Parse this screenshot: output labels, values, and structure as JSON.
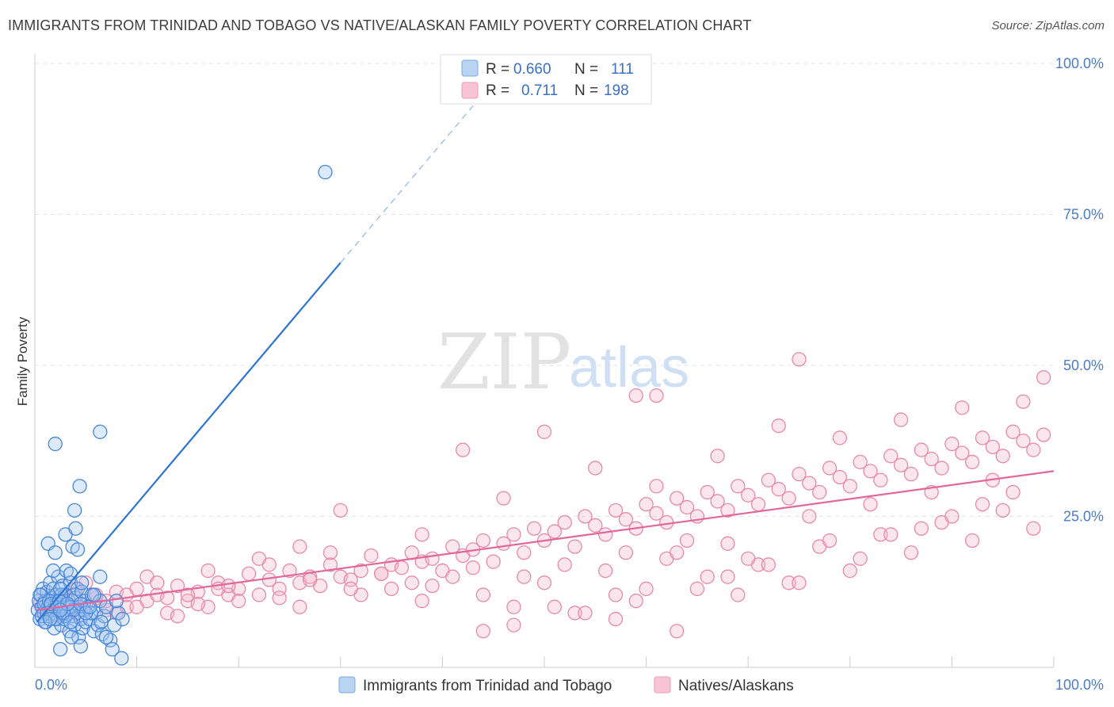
{
  "title": "IMMIGRANTS FROM TRINIDAD AND TOBAGO VS NATIVE/ALASKAN FAMILY POVERTY CORRELATION CHART",
  "source": "Source: ZipAtlas.com",
  "watermark": {
    "zip": "ZIP",
    "atlas": "atlas"
  },
  "colors": {
    "blue": "#4a86d8",
    "blue_fill": "rgba(158,196,240,0.35)",
    "pink": "#e58aaa",
    "pink_fill": "rgba(245,182,204,0.35)",
    "blue_line": "#2f74d0",
    "pink_line": "#e2679a"
  },
  "legend": {
    "rows": [
      {
        "r_label": "R =",
        "r_value": "0.660",
        "n_label": "N =",
        "n_value": "111"
      },
      {
        "r_label": "R =",
        "r_value": "0.711",
        "n_label": "N =",
        "n_value": "198"
      }
    ]
  },
  "bottom_legend": [
    "Immigrants from Trinidad and Tobago",
    "Natives/Alaskans"
  ],
  "chart_data": {
    "type": "scatter",
    "xlabel": "",
    "ylabel": "Family Poverty",
    "xlim": [
      0,
      100
    ],
    "ylim": [
      0,
      100
    ],
    "x_tick_labels": [
      "0.0%",
      "100.0%"
    ],
    "y_tick_labels": [
      "25.0%",
      "50.0%",
      "75.0%",
      "100.0%"
    ],
    "grid": true,
    "legend_position": "top-center",
    "series": [
      {
        "name": "Immigrants from Trinidad and Tobago",
        "trend": {
          "x0": 0.2,
          "y0": 7.5,
          "x1": 30.0,
          "y1": 67.0,
          "dash_to_x": 43.0
        },
        "points": [
          [
            0.3,
            9.5
          ],
          [
            0.4,
            11
          ],
          [
            0.5,
            8
          ],
          [
            0.6,
            12
          ],
          [
            0.7,
            10
          ],
          [
            0.8,
            13
          ],
          [
            0.9,
            9
          ],
          [
            1.0,
            11
          ],
          [
            1.1,
            7.5
          ],
          [
            1.2,
            12.5
          ],
          [
            1.3,
            10
          ],
          [
            1.4,
            8.5
          ],
          [
            1.5,
            14
          ],
          [
            1.6,
            9
          ],
          [
            1.7,
            11.5
          ],
          [
            1.8,
            13
          ],
          [
            1.9,
            6.5
          ],
          [
            2.0,
            10.5
          ],
          [
            2.1,
            12
          ],
          [
            2.2,
            8
          ],
          [
            2.3,
            15
          ],
          [
            2.4,
            9.5
          ],
          [
            2.5,
            11
          ],
          [
            2.6,
            7
          ],
          [
            2.7,
            13.5
          ],
          [
            2.8,
            10
          ],
          [
            2.9,
            8
          ],
          [
            3.0,
            12
          ],
          [
            3.1,
            16
          ],
          [
            3.2,
            9
          ],
          [
            3.3,
            11
          ],
          [
            3.4,
            6
          ],
          [
            3.5,
            14
          ],
          [
            3.6,
            10
          ],
          [
            3.7,
            8.5
          ],
          [
            3.8,
            12
          ],
          [
            3.9,
            7
          ],
          [
            4.0,
            11.5
          ],
          [
            4.1,
            9
          ],
          [
            4.2,
            13
          ],
          [
            4.3,
            5
          ],
          [
            4.4,
            10
          ],
          [
            4.5,
            8
          ],
          [
            4.6,
            12.5
          ],
          [
            4.7,
            6.5
          ],
          [
            4.8,
            9.5
          ],
          [
            4.9,
            11
          ],
          [
            5.0,
            7.5
          ],
          [
            5.2,
            10
          ],
          [
            5.4,
            8
          ],
          [
            5.6,
            12
          ],
          [
            5.8,
            6
          ],
          [
            6.0,
            9
          ],
          [
            6.2,
            7
          ],
          [
            6.4,
            11
          ],
          [
            6.6,
            5.5
          ],
          [
            6.8,
            8.5
          ],
          [
            7.0,
            10
          ],
          [
            7.4,
            4.5
          ],
          [
            7.8,
            7
          ],
          [
            8.2,
            9
          ],
          [
            0.5,
            12
          ],
          [
            0.9,
            10.5
          ],
          [
            1.4,
            11
          ],
          [
            1.8,
            9.5
          ],
          [
            2.2,
            10.5
          ],
          [
            2.6,
            12
          ],
          [
            3.0,
            8.5
          ],
          [
            3.4,
            10
          ],
          [
            3.8,
            9.5
          ],
          [
            0.7,
            8.5
          ],
          [
            1.2,
            9
          ],
          [
            1.6,
            10.5
          ],
          [
            2.0,
            8
          ],
          [
            2.4,
            11
          ],
          [
            2.8,
            9
          ],
          [
            3.2,
            10.5
          ],
          [
            1.0,
            7.5
          ],
          [
            1.5,
            8
          ],
          [
            2.5,
            9.5
          ],
          [
            3.5,
            7.5
          ],
          [
            4.5,
            10.5
          ],
          [
            5.5,
            9
          ],
          [
            6.5,
            7.5
          ],
          [
            1.3,
            20.5
          ],
          [
            1.8,
            16
          ],
          [
            2.0,
            19
          ],
          [
            2.5,
            13
          ],
          [
            3.0,
            22
          ],
          [
            3.5,
            15.5
          ],
          [
            3.7,
            20
          ],
          [
            3.9,
            26
          ],
          [
            4.0,
            23
          ],
          [
            4.2,
            19.5
          ],
          [
            4.6,
            14
          ],
          [
            5.0,
            9
          ],
          [
            5.4,
            10
          ],
          [
            5.8,
            12
          ],
          [
            6.4,
            15
          ],
          [
            7.0,
            5
          ],
          [
            7.6,
            3
          ],
          [
            8.0,
            11
          ],
          [
            8.6,
            8
          ],
          [
            2.0,
            37
          ],
          [
            4.4,
            30
          ],
          [
            6.4,
            39
          ],
          [
            2.5,
            3
          ],
          [
            4.5,
            3.5
          ],
          [
            8.5,
            1.5
          ],
          [
            28.5,
            82
          ],
          [
            3.6,
            5
          ]
        ]
      },
      {
        "name": "Natives/Alaskans",
        "trend": {
          "x0": 0.2,
          "y0": 9.5,
          "x1": 100.0,
          "y1": 32.5
        },
        "points": [
          [
            1,
            10
          ],
          [
            2,
            11
          ],
          [
            3,
            9
          ],
          [
            4,
            12
          ],
          [
            5,
            10.5
          ],
          [
            6,
            11.5
          ],
          [
            7,
            9.5
          ],
          [
            8,
            12.5
          ],
          [
            9,
            10
          ],
          [
            10,
            13
          ],
          [
            11,
            11
          ],
          [
            12,
            12
          ],
          [
            13,
            9
          ],
          [
            14,
            13.5
          ],
          [
            15,
            11
          ],
          [
            16,
            12.5
          ],
          [
            17,
            10
          ],
          [
            18,
            14
          ],
          [
            19,
            12
          ],
          [
            20,
            13
          ],
          [
            21,
            15.5
          ],
          [
            22,
            12
          ],
          [
            23,
            14.5
          ],
          [
            24,
            13
          ],
          [
            25,
            16
          ],
          [
            26,
            14
          ],
          [
            27,
            15
          ],
          [
            28,
            13.5
          ],
          [
            29,
            17
          ],
          [
            30,
            15
          ],
          [
            31,
            14.5
          ],
          [
            32,
            16
          ],
          [
            33,
            18.5
          ],
          [
            34,
            15.5
          ],
          [
            35,
            17
          ],
          [
            36,
            16.5
          ],
          [
            37,
            19
          ],
          [
            38,
            17.5
          ],
          [
            39,
            18
          ],
          [
            40,
            16
          ],
          [
            41,
            20
          ],
          [
            42,
            18.5
          ],
          [
            43,
            19.5
          ],
          [
            44,
            21
          ],
          [
            45,
            17.5
          ],
          [
            46,
            20.5
          ],
          [
            47,
            22
          ],
          [
            48,
            19
          ],
          [
            49,
            23
          ],
          [
            50,
            21
          ],
          [
            51,
            22.5
          ],
          [
            52,
            24
          ],
          [
            53,
            20
          ],
          [
            54,
            25
          ],
          [
            55,
            23.5
          ],
          [
            56,
            22
          ],
          [
            57,
            26
          ],
          [
            58,
            24.5
          ],
          [
            59,
            23
          ],
          [
            60,
            27
          ],
          [
            61,
            25.5
          ],
          [
            62,
            24
          ],
          [
            63,
            28
          ],
          [
            64,
            26.5
          ],
          [
            65,
            25
          ],
          [
            66,
            29
          ],
          [
            67,
            27.5
          ],
          [
            68,
            26
          ],
          [
            69,
            30
          ],
          [
            70,
            28.5
          ],
          [
            71,
            27
          ],
          [
            72,
            31
          ],
          [
            73,
            29.5
          ],
          [
            74,
            28
          ],
          [
            75,
            32
          ],
          [
            76,
            30.5
          ],
          [
            77,
            29
          ],
          [
            78,
            33
          ],
          [
            79,
            31.5
          ],
          [
            80,
            30
          ],
          [
            81,
            34
          ],
          [
            82,
            32.5
          ],
          [
            83,
            31
          ],
          [
            84,
            35
          ],
          [
            85,
            33.5
          ],
          [
            86,
            32
          ],
          [
            87,
            36
          ],
          [
            88,
            34.5
          ],
          [
            89,
            33
          ],
          [
            90,
            37
          ],
          [
            91,
            35.5
          ],
          [
            92,
            34
          ],
          [
            93,
            38
          ],
          [
            94,
            36.5
          ],
          [
            95,
            35
          ],
          [
            96,
            39
          ],
          [
            97,
            37.5
          ],
          [
            98,
            36
          ],
          [
            99,
            38.5
          ],
          [
            5,
            14
          ],
          [
            8,
            9
          ],
          [
            11,
            15
          ],
          [
            14,
            8.5
          ],
          [
            17,
            16
          ],
          [
            20,
            11
          ],
          [
            23,
            17
          ],
          [
            26,
            10
          ],
          [
            29,
            19
          ],
          [
            32,
            12
          ],
          [
            35,
            13
          ],
          [
            38,
            11
          ],
          [
            41,
            15
          ],
          [
            44,
            12
          ],
          [
            47,
            10
          ],
          [
            50,
            14
          ],
          [
            53,
            9
          ],
          [
            56,
            16
          ],
          [
            59,
            11
          ],
          [
            62,
            18
          ],
          [
            65,
            13
          ],
          [
            68,
            15
          ],
          [
            71,
            17
          ],
          [
            74,
            14
          ],
          [
            77,
            20
          ],
          [
            80,
            16
          ],
          [
            83,
            22
          ],
          [
            86,
            19
          ],
          [
            89,
            24
          ],
          [
            92,
            21
          ],
          [
            95,
            26
          ],
          [
            98,
            23
          ],
          [
            42,
            36
          ],
          [
            46,
            28
          ],
          [
            50,
            39
          ],
          [
            55,
            33
          ],
          [
            58,
            19
          ],
          [
            61,
            30
          ],
          [
            64,
            21
          ],
          [
            67,
            35
          ],
          [
            70,
            18
          ],
          [
            73,
            40
          ],
          [
            76,
            25
          ],
          [
            79,
            38
          ],
          [
            82,
            27
          ],
          [
            85,
            41
          ],
          [
            88,
            29
          ],
          [
            91,
            43
          ],
          [
            94,
            31
          ],
          [
            97,
            44
          ],
          [
            44,
            6
          ],
          [
            47,
            7
          ],
          [
            51,
            10
          ],
          [
            54,
            9
          ],
          [
            57,
            8
          ],
          [
            60,
            13
          ],
          [
            63,
            6
          ],
          [
            66,
            15
          ],
          [
            69,
            12
          ],
          [
            72,
            17
          ],
          [
            75,
            14
          ],
          [
            78,
            21
          ],
          [
            81,
            18
          ],
          [
            84,
            22
          ],
          [
            87,
            23
          ],
          [
            90,
            25
          ],
          [
            93,
            27
          ],
          [
            96,
            29
          ],
          [
            99,
            48
          ],
          [
            75,
            51
          ],
          [
            59,
            45
          ],
          [
            61,
            45
          ],
          [
            38,
            22
          ],
          [
            30,
            26
          ],
          [
            26,
            20
          ],
          [
            22,
            18
          ],
          [
            18,
            13
          ],
          [
            15,
            12
          ],
          [
            12,
            14
          ],
          [
            9,
            12
          ],
          [
            7,
            11
          ],
          [
            4,
            13
          ],
          [
            3,
            12
          ],
          [
            2,
            10
          ],
          [
            1.5,
            11.5
          ],
          [
            0.8,
            9
          ],
          [
            0.5,
            10.5
          ],
          [
            6,
            12
          ],
          [
            10,
            10
          ],
          [
            13,
            11.5
          ],
          [
            16,
            10.5
          ],
          [
            19,
            13.5
          ],
          [
            24,
            11.5
          ],
          [
            27,
            14.5
          ],
          [
            31,
            13
          ],
          [
            34,
            15.5
          ],
          [
            37,
            14
          ],
          [
            39,
            13.5
          ],
          [
            43,
            16.5
          ],
          [
            48,
            15
          ],
          [
            52,
            17
          ],
          [
            57,
            12
          ],
          [
            63,
            19
          ],
          [
            68,
            20.5
          ]
        ]
      }
    ]
  }
}
